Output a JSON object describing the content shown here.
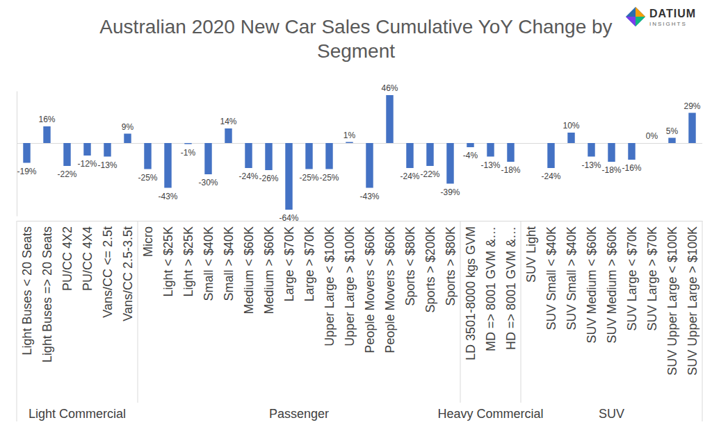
{
  "chart_data": {
    "type": "bar",
    "title": "Australian 2020 New Car Sales Cumulative YoY Change by Segment",
    "annotations": [
      "DATIUM",
      "INSIGHTS"
    ],
    "categories": [
      "Light Buses < 20 Seats",
      "Light Buses => 20 Seats",
      "PU/CC 4X2",
      "PU/CC 4X4",
      "Vans/CC <= 2.5t",
      "Vans/CC 2.5-3.5t",
      "Micro",
      "Light < $25K",
      "Light > $25K",
      "Small < $40K",
      "Small > $40K",
      "Medium < $60K",
      "Medium > $60K",
      "Large < $70K",
      "Large > $70K",
      "Upper Large < $100K",
      "Upper Large > $100K",
      "People Movers < $60K",
      "People Movers > $60K",
      "Sports < $80K",
      "Sports > $200K",
      "Sports > $80K",
      "LD 3501-8000 kgs GVM",
      "MD => 8001 GVM &…",
      "HD => 8001 GVM &…",
      "SUV Light",
      "SUV Small < $40K",
      "SUV Small > $40K",
      "SUV Medium < $60K",
      "SUV Medium > $60K",
      "SUV Large < $70K",
      "SUV Large > $70K",
      "SUV Upper Large < $100K",
      "SUV Upper Large > $100K"
    ],
    "groups": [
      {
        "label": "Light Commercial",
        "count": 6
      },
      {
        "label": "Passenger",
        "count": 16
      },
      {
        "label": "Heavy Commercial",
        "count": 3
      },
      {
        "label": "SUV",
        "count": 9
      }
    ],
    "values": [
      -19,
      16,
      -22,
      -12,
      -13,
      9,
      -25,
      -43,
      -1,
      -30,
      14,
      -24,
      -26,
      -64,
      -25,
      -25,
      1,
      -43,
      46,
      -24,
      -22,
      -39,
      -4,
      -13,
      -18,
      null,
      -24,
      10,
      -13,
      -18,
      -16,
      0,
      5,
      29
    ],
    "value_labels": [
      "-19%",
      "16%",
      "-22%",
      "-12%",
      "-13%",
      "9%",
      "-25%",
      "-43%",
      "-1%",
      "-30%",
      "14%",
      "-24%",
      "-26%",
      "-64%",
      "-25%",
      "-25%",
      "1%",
      "-43%",
      "46%",
      "-24%",
      "-22%",
      "-39%",
      "-4%",
      "-13%",
      "-18%",
      null,
      "-24%",
      "10%",
      "-13%",
      "-18%",
      "-16%",
      "0%",
      "5%",
      "29%"
    ],
    "color": "#4472c4",
    "ylim": [
      -70,
      50
    ],
    "yticks": [
      0
    ],
    "grid": true,
    "data_labels": true,
    "tick_labels": "x"
  }
}
